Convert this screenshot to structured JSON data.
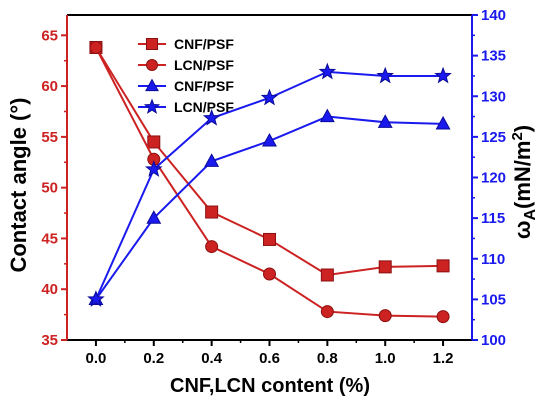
{
  "chart_data": {
    "type": "line",
    "x": [
      0.0,
      0.2,
      0.4,
      0.6,
      0.8,
      1.0,
      1.2
    ],
    "x_ticks": [
      "0.0",
      "0.2",
      "0.4",
      "0.6",
      "0.8",
      "1.0",
      "1.2"
    ],
    "xlim": [
      -0.1,
      1.3
    ],
    "xlabel": "CNF,LCN content (%)",
    "left_axis": {
      "label": "Contact angle (°)",
      "ylim": [
        35,
        67
      ],
      "ticks": [
        "35",
        "40",
        "45",
        "50",
        "55",
        "60",
        "65"
      ],
      "tick_values": [
        35,
        40,
        45,
        50,
        55,
        60,
        65
      ],
      "color": "#cc2222"
    },
    "right_axis": {
      "label_main": "ω",
      "label_sub": "A",
      "label_units": "(mN/m",
      "label_sup": "2",
      "label_close": ")",
      "ylim": [
        100,
        140
      ],
      "ticks": [
        "100",
        "105",
        "110",
        "115",
        "120",
        "125",
        "130",
        "135",
        "140"
      ],
      "tick_values": [
        100,
        105,
        110,
        115,
        120,
        125,
        130,
        135,
        140
      ],
      "color": "#1a1aee"
    },
    "series": [
      {
        "name": "CNF/PSF",
        "axis": "left",
        "marker": "square",
        "color": "#cc2222",
        "values": [
          63.8,
          54.5,
          47.6,
          44.9,
          41.4,
          42.2,
          42.3
        ]
      },
      {
        "name": "LCN/PSF",
        "axis": "left",
        "marker": "circle",
        "color": "#cc2222",
        "values": [
          63.8,
          52.8,
          44.2,
          41.5,
          37.8,
          37.4,
          37.3
        ]
      },
      {
        "name": "CNF/PSF",
        "axis": "right",
        "marker": "triangle",
        "color": "#1a1aee",
        "values": [
          105,
          115,
          122,
          124.5,
          127.5,
          126.8,
          126.6
        ]
      },
      {
        "name": "LCN/PSF",
        "axis": "right",
        "marker": "star",
        "color": "#1a1aee",
        "values": [
          105,
          121,
          127.3,
          129.8,
          133,
          132.5,
          132.5
        ]
      }
    ],
    "legend_position": "top-left",
    "grid": false
  }
}
